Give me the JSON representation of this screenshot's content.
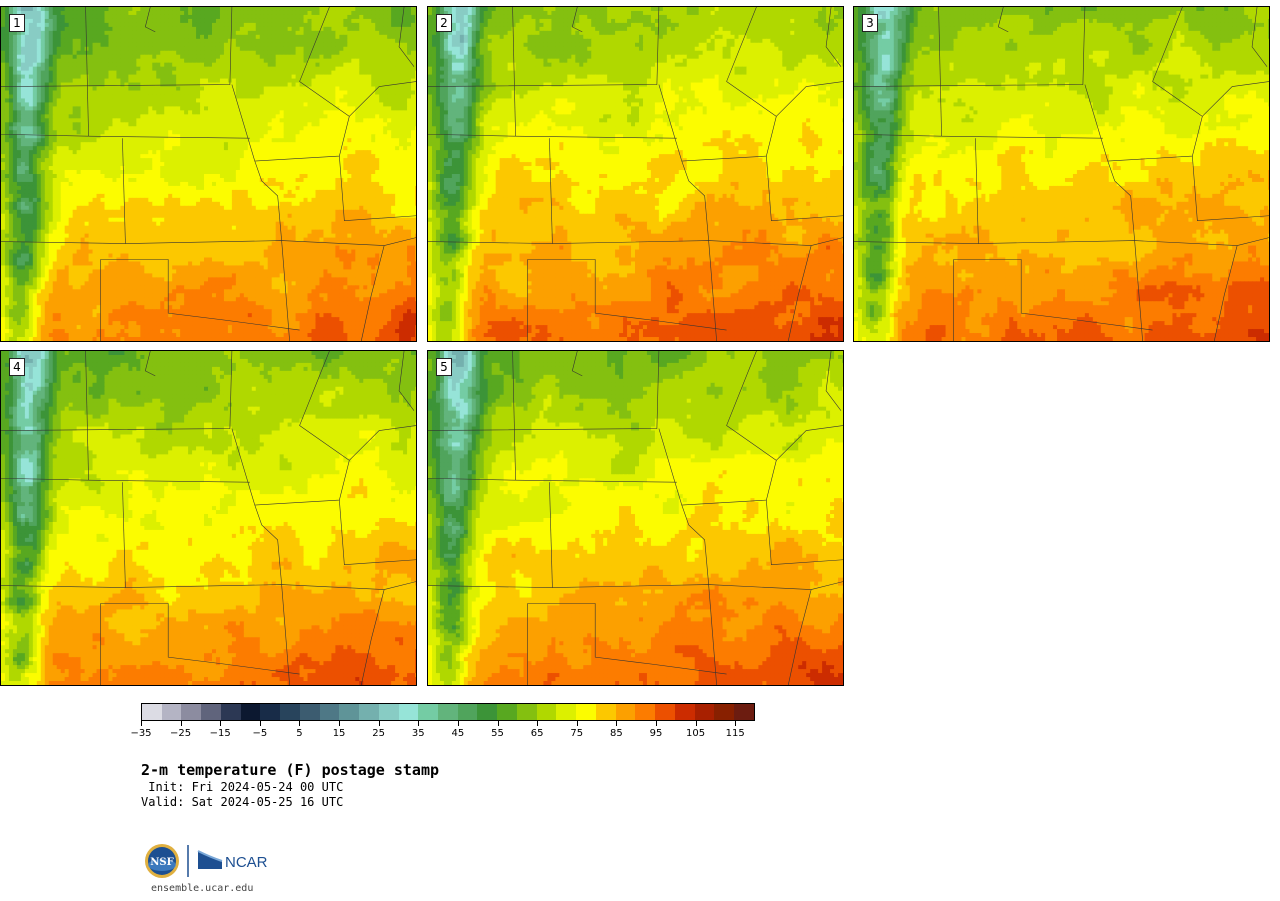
{
  "title": "2-m temperature (F) postage stamp",
  "init_text": " Init: Fri 2024-05-24 00 UTC",
  "valid_text": "Valid: Sat 2024-05-25 16 UTC",
  "website": "ensemble.ucar.edu",
  "logos": {
    "nsf": "NSF",
    "ncar": "NCAR"
  },
  "panels": [
    {
      "label": "1",
      "warmth": 0.0
    },
    {
      "label": "2",
      "warmth": 0.35
    },
    {
      "label": "3",
      "warmth": 0.25
    },
    {
      "label": "4",
      "warmth": 0.05
    },
    {
      "label": "5",
      "warmth": 0.2
    }
  ],
  "colorbar": {
    "min": -35,
    "max": 120,
    "step": 5,
    "tick_labels": [
      "−35",
      "−25",
      "−15",
      "−5",
      "5",
      "15",
      "25",
      "35",
      "45",
      "55",
      "65",
      "75",
      "85",
      "95",
      "105",
      "115"
    ],
    "colors": [
      "#dcdce4",
      "#b4b4c4",
      "#8c8ca0",
      "#60647c",
      "#2c3854",
      "#0c1830",
      "#182c48",
      "#28445c",
      "#3c5c70",
      "#4e7886",
      "#5f9498",
      "#74b0ae",
      "#88ccc4",
      "#96e4d8",
      "#74cca4",
      "#62b47c",
      "#50a45c",
      "#3c9438",
      "#58a820",
      "#84c010",
      "#b0d800",
      "#dcf000",
      "#fcfc00",
      "#fcc800",
      "#fca000",
      "#fc7c00",
      "#ec5000",
      "#cc2c00",
      "#a82000",
      "#882000",
      "#6c1c10"
    ]
  }
}
